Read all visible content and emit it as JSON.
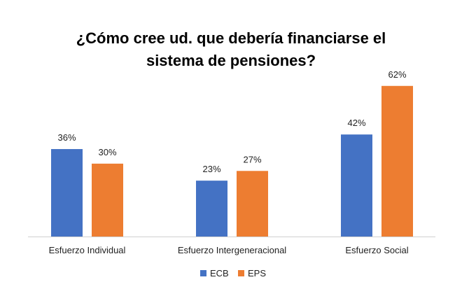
{
  "title_line1": "¿Cómo cree ud. que debería financiarse el",
  "title_line2": "sistema de pensiones?",
  "chart_data": {
    "type": "bar",
    "title": "¿Cómo cree ud. que debería financiarse el sistema de pensiones?",
    "categories": [
      "Esfuerzo Individual",
      "Esfuerzo Intergeneracional",
      "Esfuerzo Social"
    ],
    "series": [
      {
        "name": "ECB",
        "values": [
          36,
          23,
          42
        ],
        "labels": [
          "36%",
          "23%",
          "42%"
        ],
        "color": "#4472C4"
      },
      {
        "name": "EPS",
        "values": [
          30,
          27,
          62
        ],
        "labels": [
          "30%",
          "27%",
          "62%"
        ],
        "color": "#ED7D31"
      }
    ],
    "ylim": [
      0,
      70
    ],
    "grid": false,
    "legend": "bottom"
  }
}
